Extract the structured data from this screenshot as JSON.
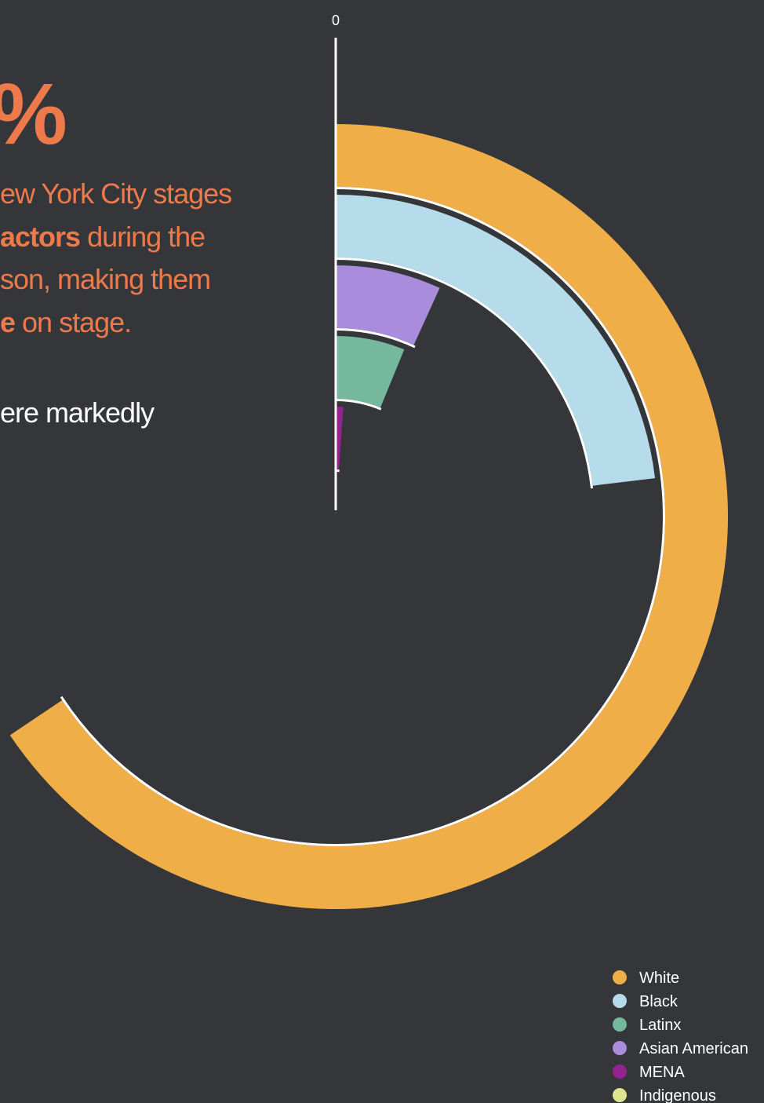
{
  "text": {
    "headline": "%",
    "lines": [
      [
        {
          "text": "ew York City stages",
          "bold": false
        }
      ],
      [
        {
          "text": "actors",
          "bold": true
        },
        {
          "text": " during the",
          "bold": false
        }
      ],
      [
        {
          "text": "son, making them",
          "bold": false
        }
      ],
      [
        {
          "text": "e",
          "bold": true
        },
        {
          "text": " on stage.",
          "bold": false
        }
      ]
    ],
    "note": "ere markedly"
  },
  "chart_data": {
    "type": "radial-bar",
    "rlim": [
      0,
      100
    ],
    "ticks": [
      0
    ],
    "series": [
      {
        "name": "White",
        "color": "#efae47",
        "value": 65.6,
        "ring": 0
      },
      {
        "name": "Black",
        "color": "#b6dbea",
        "value": 23.1,
        "ring": 1
      },
      {
        "name": "Latinx",
        "color": "#76b89d",
        "value": 6.2,
        "ring": 3
      },
      {
        "name": "Asian American",
        "color": "#a98cdb",
        "value": 6.8,
        "ring": 2
      },
      {
        "name": "MENA",
        "color": "#93238f",
        "value": 1.1,
        "ring": 4
      },
      {
        "name": "Indigenous",
        "color": "#dfe58e",
        "value": 0.2,
        "ring": 5
      }
    ]
  }
}
